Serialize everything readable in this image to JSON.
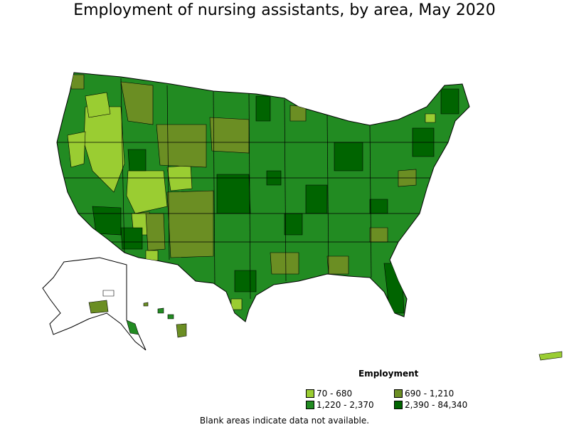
{
  "title": "Employment of nursing assistants, by area, May 2020",
  "legend": {
    "title": "Employment",
    "items": [
      {
        "label": "70 - 680",
        "color": "#9acd32"
      },
      {
        "label": "690 - 1,210",
        "color": "#6b8e23"
      },
      {
        "label": "1,220 - 2,370",
        "color": "#228b22"
      },
      {
        "label": "2,390 - 84,340",
        "color": "#006400"
      }
    ]
  },
  "footnote": "Blank areas indicate data not available."
}
